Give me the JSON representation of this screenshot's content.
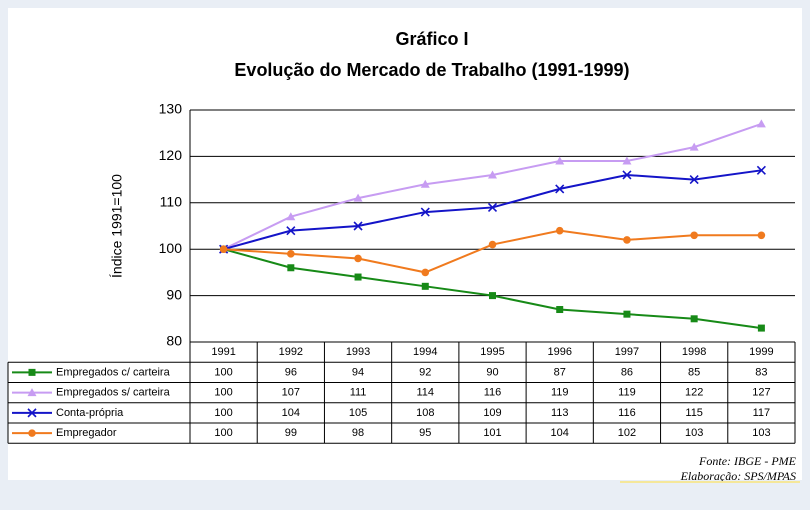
{
  "chart_data": {
    "type": "line",
    "title": "Gráfico I",
    "subtitle": "Evolução do Mercado de Trabalho (1991-1999)",
    "y_label": "Índice 1991=100",
    "categories": [
      "1991",
      "1992",
      "1993",
      "1994",
      "1995",
      "1996",
      "1997",
      "1998",
      "1999"
    ],
    "series": [
      {
        "name": "Empregados c/ carteira",
        "color": "#178a17",
        "marker": "square",
        "values": [
          100,
          96,
          94,
          92,
          90,
          87,
          86,
          85,
          83
        ]
      },
      {
        "name": "Empregados s/ carteira",
        "color": "#c79cf2",
        "marker": "triangle",
        "values": [
          100,
          107,
          111,
          114,
          116,
          119,
          119,
          122,
          127
        ]
      },
      {
        "name": "Conta-própria",
        "color": "#1414c8",
        "marker": "x",
        "values": [
          100,
          104,
          105,
          108,
          109,
          113,
          116,
          115,
          117
        ]
      },
      {
        "name": "Empregador",
        "color": "#f07a1e",
        "marker": "circle",
        "values": [
          100,
          99,
          98,
          95,
          101,
          104,
          102,
          103,
          103
        ]
      }
    ],
    "ylim": [
      80,
      130
    ],
    "yticks": [
      80,
      90,
      100,
      110,
      120,
      130
    ],
    "grid": true,
    "notes": [
      "Fonte: IBGE - PME",
      "Elaboração: SPS/MPAS"
    ]
  }
}
